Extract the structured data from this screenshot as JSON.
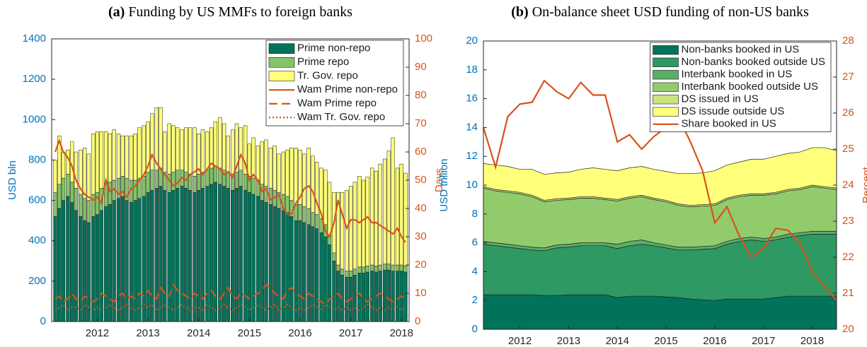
{
  "chart_data": [
    {
      "type": "bar",
      "title_label": "(a)",
      "title": "Funding by US MMFs to foreign banks",
      "ylabel": "USD bln",
      "y2label": "Days",
      "ycolor": "#0072bd",
      "y2color": "#d95319",
      "xlim": [
        2011.1,
        2018.15
      ],
      "xticks": [
        2012,
        2013,
        2014,
        2015,
        2016,
        2017,
        2018
      ],
      "ylim": [
        0,
        1400
      ],
      "yticks": [
        0,
        200,
        400,
        600,
        800,
        1000,
        1200,
        1400
      ],
      "y2lim": [
        0,
        100
      ],
      "y2ticks": [
        0,
        10,
        20,
        30,
        40,
        50,
        60,
        70,
        80,
        90,
        100
      ],
      "legend": "upper right",
      "x": [
        2011.17,
        2011.25,
        2011.33,
        2011.42,
        2011.5,
        2011.58,
        2011.67,
        2011.75,
        2011.83,
        2011.92,
        2012.0,
        2012.08,
        2012.17,
        2012.25,
        2012.33,
        2012.42,
        2012.5,
        2012.58,
        2012.67,
        2012.75,
        2012.83,
        2012.92,
        2013.0,
        2013.08,
        2013.17,
        2013.25,
        2013.33,
        2013.42,
        2013.5,
        2013.58,
        2013.67,
        2013.75,
        2013.83,
        2013.92,
        2014.0,
        2014.08,
        2014.17,
        2014.25,
        2014.33,
        2014.42,
        2014.5,
        2014.58,
        2014.67,
        2014.75,
        2014.83,
        2014.92,
        2015.0,
        2015.08,
        2015.17,
        2015.25,
        2015.33,
        2015.42,
        2015.5,
        2015.58,
        2015.67,
        2015.75,
        2015.83,
        2015.92,
        2016.0,
        2016.08,
        2016.17,
        2016.25,
        2016.33,
        2016.42,
        2016.5,
        2016.58,
        2016.67,
        2016.75,
        2016.83,
        2016.92,
        2017.0,
        2017.08,
        2017.17,
        2017.25,
        2017.33,
        2017.42,
        2017.5,
        2017.58,
        2017.67,
        2017.75,
        2017.83,
        2017.92,
        2018.0,
        2018.08
      ],
      "series": [
        {
          "name": "Prime non-repo",
          "color": "#00735a",
          "values": [
            520,
            560,
            600,
            620,
            590,
            550,
            520,
            500,
            490,
            520,
            530,
            550,
            570,
            580,
            600,
            610,
            620,
            600,
            590,
            600,
            610,
            620,
            640,
            650,
            660,
            670,
            650,
            640,
            650,
            660,
            670,
            660,
            650,
            640,
            650,
            660,
            670,
            680,
            690,
            680,
            670,
            660,
            650,
            660,
            670,
            650,
            640,
            630,
            620,
            600,
            590,
            580,
            570,
            560,
            550,
            540,
            520,
            500,
            500,
            490,
            480,
            470,
            460,
            440,
            420,
            380,
            300,
            250,
            230,
            220,
            220,
            230,
            240,
            240,
            245,
            250,
            245,
            250,
            255,
            255,
            250,
            250,
            250,
            245
          ]
        },
        {
          "name": "Prime repo",
          "color": "#86c26a",
          "values": [
            120,
            120,
            110,
            110,
            100,
            110,
            110,
            110,
            110,
            110,
            110,
            110,
            110,
            110,
            100,
            100,
            100,
            110,
            110,
            100,
            100,
            100,
            100,
            100,
            90,
            90,
            90,
            90,
            90,
            90,
            80,
            80,
            80,
            80,
            80,
            80,
            80,
            80,
            80,
            80,
            80,
            80,
            80,
            80,
            80,
            80,
            80,
            80,
            80,
            80,
            80,
            80,
            80,
            80,
            80,
            80,
            80,
            80,
            80,
            80,
            80,
            70,
            70,
            70,
            60,
            50,
            40,
            30,
            30,
            30,
            30,
            30,
            30,
            30,
            30,
            30,
            30,
            30,
            30,
            30,
            30,
            30,
            30,
            30
          ]
        },
        {
          "name": "Tr. Gov. repo",
          "color": "#ffff7a",
          "values": [
            160,
            240,
            130,
            120,
            200,
            180,
            220,
            250,
            230,
            300,
            300,
            280,
            260,
            240,
            250,
            220,
            200,
            210,
            220,
            230,
            250,
            250,
            250,
            280,
            310,
            300,
            200,
            250,
            230,
            210,
            200,
            220,
            230,
            240,
            200,
            210,
            190,
            200,
            220,
            250,
            230,
            180,
            220,
            240,
            210,
            240,
            160,
            200,
            170,
            210,
            230,
            200,
            220,
            190,
            210,
            230,
            260,
            280,
            270,
            260,
            300,
            280,
            260,
            250,
            270,
            260,
            300,
            360,
            380,
            400,
            420,
            430,
            450,
            430,
            440,
            480,
            470,
            500,
            520,
            560,
            630,
            480,
            500,
            460
          ]
        },
        {
          "name": "Wam Prime non-repo",
          "type": "line",
          "axis": "y2",
          "style": "solid",
          "color": "#d95319",
          "values": [
            60,
            64,
            60,
            58,
            55,
            50,
            47,
            45,
            44,
            43,
            44,
            42,
            50,
            46,
            47,
            45,
            46,
            44,
            47,
            48,
            50,
            52,
            55,
            59,
            56,
            54,
            52,
            50,
            48,
            49,
            51,
            50,
            52,
            53,
            54,
            52,
            54,
            56,
            55,
            54,
            52,
            53,
            51,
            55,
            59,
            56,
            50,
            52,
            50,
            46,
            47,
            43,
            44,
            45,
            40,
            38,
            38,
            42,
            44,
            47,
            48,
            46,
            42,
            38,
            32,
            30,
            35,
            43,
            38,
            33,
            36,
            36,
            35,
            36,
            37,
            35,
            35,
            34,
            33,
            32,
            31,
            33,
            30,
            28
          ]
        },
        {
          "name": "Wam Prime repo",
          "type": "line",
          "axis": "y2",
          "style": "dashed",
          "color": "#d95319",
          "values": [
            8,
            9,
            7,
            8,
            10,
            8,
            7,
            9,
            8,
            7,
            8,
            10,
            9,
            8,
            7,
            9,
            10,
            8,
            9,
            8,
            10,
            9,
            11,
            9,
            8,
            12,
            10,
            9,
            13,
            11,
            10,
            9,
            8,
            10,
            9,
            8,
            10,
            11,
            9,
            8,
            10,
            12,
            9,
            8,
            10,
            9,
            8,
            9,
            10,
            11,
            13,
            12,
            10,
            9,
            8,
            11,
            12,
            10,
            9,
            8,
            10,
            9,
            8,
            7,
            6,
            8,
            9,
            10,
            8,
            7,
            8,
            9,
            10,
            8,
            7,
            8,
            9,
            10,
            9,
            8,
            7,
            8,
            9,
            8
          ]
        },
        {
          "name": "Wam Tr. Gov. repo",
          "type": "line",
          "axis": "y2",
          "style": "dotted",
          "color": "#d95319",
          "values": [
            4,
            5,
            6,
            4,
            5,
            5,
            4,
            6,
            5,
            4,
            5,
            4,
            5,
            6,
            5,
            4,
            5,
            6,
            5,
            4,
            5,
            6,
            5,
            6,
            4,
            5,
            6,
            5,
            4,
            5,
            6,
            5,
            4,
            5,
            5,
            4,
            6,
            5,
            4,
            5,
            6,
            5,
            4,
            5,
            6,
            5,
            4,
            5,
            6,
            5,
            4,
            5,
            6,
            4,
            5,
            6,
            5,
            4,
            5,
            4,
            5,
            6,
            5,
            4,
            6,
            5,
            4,
            5,
            4,
            5,
            4,
            5,
            4,
            5,
            6,
            5,
            4,
            5,
            4,
            5,
            4,
            5,
            4,
            5
          ]
        }
      ]
    },
    {
      "type": "area",
      "title_label": "(b)",
      "title": "On-balance sheet USD funding of non-US banks",
      "ylabel": "USD trillion",
      "y2label": "Percent",
      "ycolor": "#0072bd",
      "y2color": "#d95319",
      "xlim": [
        2011.25,
        2018.5
      ],
      "xticks": [
        2012,
        2013,
        2014,
        2015,
        2016,
        2017,
        2018
      ],
      "ylim": [
        0,
        20
      ],
      "yticks": [
        0,
        2,
        4,
        6,
        8,
        10,
        12,
        14,
        16,
        18,
        20
      ],
      "y2lim": [
        20,
        28
      ],
      "y2ticks": [
        20,
        21,
        22,
        23,
        24,
        25,
        26,
        27,
        28
      ],
      "legend": "upper right",
      "x": [
        2011.25,
        2011.5,
        2011.75,
        2012.0,
        2012.25,
        2012.5,
        2012.75,
        2013.0,
        2013.25,
        2013.5,
        2013.75,
        2014.0,
        2014.25,
        2014.5,
        2014.75,
        2015.0,
        2015.25,
        2015.5,
        2015.75,
        2016.0,
        2016.25,
        2016.5,
        2016.75,
        2017.0,
        2017.25,
        2017.5,
        2017.75,
        2018.0,
        2018.25,
        2018.5
      ],
      "series": [
        {
          "name": "Non-banks booked in US",
          "color": "#00735a",
          "values": [
            2.4,
            2.4,
            2.4,
            2.4,
            2.4,
            2.35,
            2.35,
            2.4,
            2.4,
            2.4,
            2.4,
            2.2,
            2.3,
            2.3,
            2.3,
            2.25,
            2.2,
            2.1,
            2.05,
            2.0,
            2.1,
            2.1,
            2.1,
            2.1,
            2.2,
            2.3,
            2.3,
            2.3,
            2.3,
            2.3
          ]
        },
        {
          "name": "Non-banks booked outside US",
          "color": "#2e9963",
          "values": [
            3.5,
            3.4,
            3.3,
            3.2,
            3.1,
            3.1,
            3.3,
            3.3,
            3.4,
            3.4,
            3.4,
            3.4,
            3.5,
            3.6,
            3.5,
            3.4,
            3.3,
            3.4,
            3.5,
            3.6,
            3.8,
            4.0,
            4.1,
            4.0,
            4.0,
            4.1,
            4.2,
            4.3,
            4.3,
            4.3
          ]
        },
        {
          "name": "Interbank booked in US",
          "color": "#5aaf66",
          "values": [
            0.2,
            0.2,
            0.2,
            0.2,
            0.2,
            0.2,
            0.2,
            0.2,
            0.2,
            0.2,
            0.2,
            0.3,
            0.3,
            0.3,
            0.2,
            0.2,
            0.2,
            0.2,
            0.2,
            0.2,
            0.2,
            0.2,
            0.2,
            0.2,
            0.2,
            0.2,
            0.2,
            0.2,
            0.2,
            0.2
          ]
        },
        {
          "name": "Interbank booked outside US",
          "color": "#92cb6c",
          "values": [
            3.7,
            3.6,
            3.6,
            3.6,
            3.5,
            3.2,
            3.1,
            3.1,
            3.1,
            3.1,
            3.0,
            3.0,
            3.0,
            3.0,
            3.0,
            3.0,
            2.9,
            2.8,
            2.8,
            2.8,
            2.9,
            2.9,
            2.9,
            3.0,
            3.0,
            3.0,
            3.0,
            3.1,
            3.0,
            2.9
          ]
        },
        {
          "name": "DS issued in US",
          "color": "#c9e47c",
          "values": [
            0.1,
            0.1,
            0.1,
            0.1,
            0.1,
            0.1,
            0.1,
            0.1,
            0.1,
            0.1,
            0.1,
            0.1,
            0.1,
            0.1,
            0.1,
            0.1,
            0.1,
            0.1,
            0.1,
            0.1,
            0.1,
            0.1,
            0.1,
            0.1,
            0.1,
            0.1,
            0.1,
            0.1,
            0.1,
            0.1
          ]
        },
        {
          "name": "DS issude outside US",
          "color": "#ffff7a",
          "values": [
            1.6,
            1.7,
            1.7,
            1.6,
            1.8,
            1.8,
            1.8,
            1.8,
            1.9,
            2.0,
            2.0,
            2.0,
            2.0,
            2.0,
            2.0,
            2.0,
            2.1,
            2.2,
            2.2,
            2.3,
            2.3,
            2.3,
            2.4,
            2.4,
            2.5,
            2.5,
            2.5,
            2.6,
            2.7,
            2.6
          ]
        },
        {
          "name": "Share booked in US",
          "type": "line",
          "axis": "y2",
          "style": "solid",
          "color": "#d95319",
          "values": [
            25.6,
            24.5,
            25.9,
            26.25,
            26.3,
            26.9,
            26.6,
            26.4,
            26.85,
            26.5,
            26.5,
            25.2,
            25.4,
            25.0,
            25.35,
            25.6,
            25.9,
            25.2,
            24.4,
            22.95,
            23.4,
            22.6,
            22.0,
            22.25,
            22.8,
            22.75,
            22.4,
            21.6,
            21.2,
            20.8
          ]
        }
      ]
    }
  ]
}
